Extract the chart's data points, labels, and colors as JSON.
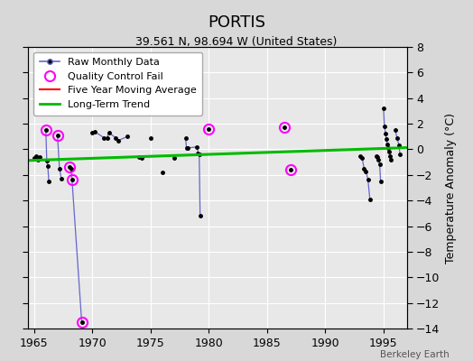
{
  "title": "PORTIS",
  "subtitle": "39.561 N, 98.694 W (United States)",
  "ylabel": "Temperature Anomaly (°C)",
  "credit": "Berkeley Earth",
  "xlim": [
    1964.5,
    1997.0
  ],
  "ylim": [
    -14,
    8
  ],
  "xticks": [
    1965,
    1970,
    1975,
    1980,
    1985,
    1990,
    1995
  ],
  "yticks": [
    -14,
    -12,
    -10,
    -8,
    -6,
    -4,
    -2,
    0,
    2,
    4,
    6,
    8
  ],
  "bg_color": "#d8d8d8",
  "plot_bg": "#e8e8e8",
  "connected_segments": [
    [
      [
        1965.0,
        -0.7
      ],
      [
        1965.17,
        -0.5
      ],
      [
        1965.33,
        -0.8
      ],
      [
        1965.5,
        -0.6
      ]
    ],
    [
      [
        1966.0,
        1.5
      ],
      [
        1966.08,
        -0.9
      ],
      [
        1966.17,
        -1.3
      ],
      [
        1966.25,
        -2.5
      ]
    ],
    [
      [
        1967.0,
        1.1
      ],
      [
        1967.17,
        -1.5
      ],
      [
        1967.33,
        -2.3
      ]
    ],
    [
      [
        1968.0,
        -1.4
      ],
      [
        1968.17,
        -1.5
      ],
      [
        1968.25,
        -2.4
      ],
      [
        1969.08,
        -13.5
      ]
    ],
    [
      [
        1970.0,
        1.3
      ],
      [
        1970.17,
        1.4
      ],
      [
        1971.0,
        0.9
      ],
      [
        1971.25,
        0.9
      ],
      [
        1971.42,
        1.3
      ],
      [
        1972.0,
        0.9
      ],
      [
        1972.25,
        0.7
      ],
      [
        1973.0,
        1.0
      ]
    ],
    [
      [
        1974.0,
        -0.6
      ],
      [
        1974.25,
        -0.7
      ]
    ],
    [
      [
        1978.0,
        0.9
      ],
      [
        1978.08,
        0.1
      ],
      [
        1978.17,
        0.1
      ],
      [
        1979.0,
        0.2
      ],
      [
        1979.08,
        -0.3
      ],
      [
        1979.17,
        -0.4
      ],
      [
        1979.25,
        -5.2
      ]
    ],
    [
      [
        1993.0,
        -0.5
      ],
      [
        1993.17,
        -0.7
      ],
      [
        1993.33,
        -1.5
      ],
      [
        1993.5,
        -1.7
      ],
      [
        1993.67,
        -2.4
      ],
      [
        1993.83,
        -3.9
      ]
    ],
    [
      [
        1994.42,
        -0.5
      ],
      [
        1994.5,
        -0.6
      ],
      [
        1994.58,
        -0.8
      ],
      [
        1994.67,
        -1.2
      ],
      [
        1994.75,
        -2.5
      ]
    ],
    [
      [
        1995.0,
        3.2
      ],
      [
        1995.08,
        1.8
      ],
      [
        1995.17,
        1.2
      ],
      [
        1995.25,
        0.8
      ],
      [
        1995.33,
        0.4
      ],
      [
        1995.42,
        0.1
      ],
      [
        1995.5,
        -0.2
      ],
      [
        1995.58,
        -0.5
      ],
      [
        1995.67,
        -0.8
      ]
    ],
    [
      [
        1996.0,
        1.5
      ],
      [
        1996.17,
        0.9
      ],
      [
        1996.33,
        0.3
      ],
      [
        1996.42,
        -0.4
      ]
    ]
  ],
  "lone_points": [
    [
      1975.0,
      0.9
    ],
    [
      1976.0,
      -1.8
    ],
    [
      1977.0,
      -0.7
    ],
    [
      1980.0,
      1.6
    ],
    [
      1986.5,
      1.7
    ],
    [
      1987.0,
      -1.6
    ]
  ],
  "qc_fail": [
    [
      1966.0,
      1.5
    ],
    [
      1967.0,
      1.1
    ],
    [
      1968.0,
      -1.4
    ],
    [
      1968.25,
      -2.4
    ],
    [
      1969.08,
      -13.5
    ],
    [
      1980.0,
      1.6
    ],
    [
      1986.5,
      1.7
    ],
    [
      1987.0,
      -1.6
    ]
  ],
  "trend_line": [
    [
      1964.5,
      -0.87
    ],
    [
      1997.0,
      0.13
    ]
  ],
  "line_color": "#6666cc",
  "dot_color": "#000000",
  "qc_color": "#ff00ff",
  "trend_color": "#00bb00",
  "mavg_color": "#ff0000",
  "title_fontsize": 13,
  "subtitle_fontsize": 9,
  "tick_fontsize": 9,
  "legend_fontsize": 8,
  "ylabel_fontsize": 9
}
